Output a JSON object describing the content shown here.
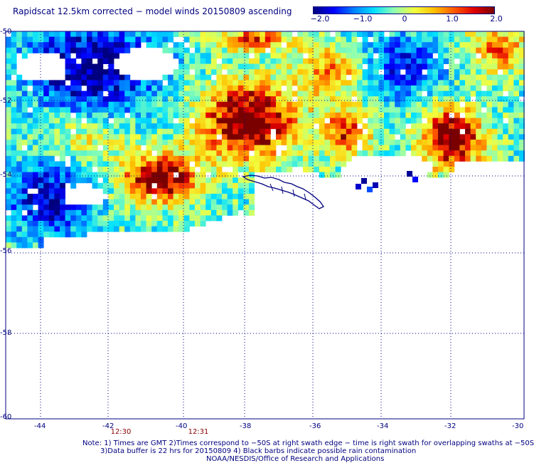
{
  "title": "Rapidscat 12.5km corrected − model winds 20150809 ascending",
  "colorbar": {
    "labels": [
      "−2.0",
      "−1.0",
      "0",
      "1.0",
      "2.0"
    ],
    "range": [
      -2.0,
      2.0
    ]
  },
  "axes": {
    "x_ticks": [
      "-44",
      "-42",
      "-40",
      "-38",
      "-36",
      "-34",
      "-32",
      "-30"
    ],
    "y_ticks": [
      "-50",
      "-52",
      "-54",
      "-56",
      "-58",
      "-60"
    ],
    "lon_range": [
      -45,
      -30
    ],
    "lat_range": [
      -50,
      -60
    ]
  },
  "times": [
    "12:30",
    "12:31"
  ],
  "notes": [
    "Note: 1) Times are GMT 2)Times correspond to −50S at right swath edge − time is right swath for overlapping swaths at −50S",
    "3)Data buffer is 22 hrs for 20150809 4) Black barbs indicate possible rain contamination",
    "NOAA/NESDIS/Office of Research and Applications"
  ],
  "colors": {
    "text": "#000080",
    "time_text": "#8b0000",
    "grid": "#000080",
    "coast": "#000080"
  },
  "map_features": [
    "gridlines",
    "wind-difference-swath",
    "south-georgia-coastline"
  ]
}
